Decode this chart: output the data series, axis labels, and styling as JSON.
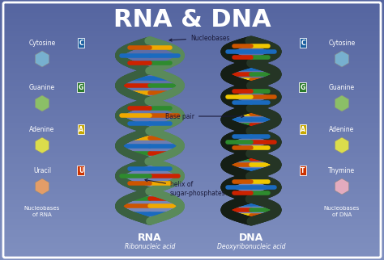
{
  "title": "RNA & DNA",
  "title_color": "#ffffff",
  "title_fontsize": 22,
  "title_fontweight": "bold",
  "bg_gradient_top": "#8090c0",
  "bg_gradient_bottom": "#5565a0",
  "bg_gradient_center": "#9aa5cc",
  "border_color": "#ffffff",
  "rna_label": "RNA",
  "rna_sublabel": "Ribonucleic acid",
  "dna_label": "DNA",
  "dna_sublabel": "Deoxyribonucleic acid",
  "rna_nucleobases_label": "Nucleobases\nof RNA",
  "dna_nucleobases_label": "Nucleobases\nof DNA",
  "annotation_nucleobases": "Nucleobases",
  "annotation_basepair": "Base pair",
  "annotation_helix": "helix of\nsugar-phosphates",
  "rna_labels": [
    "Cytosine",
    "Guanine",
    "Adenine",
    "Uracil"
  ],
  "rna_letters": [
    "C",
    "G",
    "A",
    "U"
  ],
  "rna_letter_bg": [
    "#1a5fa0",
    "#2a7a2a",
    "#c8a800",
    "#cc3300"
  ],
  "dna_labels": [
    "Cytosine",
    "Guanine",
    "Adenine",
    "Thymine"
  ],
  "dna_letters": [
    "C",
    "G",
    "A",
    "T"
  ],
  "dna_letter_bg": [
    "#1a5fa0",
    "#2a7a2a",
    "#c8a800",
    "#cc3300"
  ],
  "rna_mol_colors": [
    "#7ab8d4",
    "#90c860",
    "#e8e840",
    "#f0a060"
  ],
  "dna_mol_colors": [
    "#7ab8d4",
    "#90c860",
    "#e8e840",
    "#f0b0c0"
  ],
  "label_color": "#ffffff",
  "annotation_color": "#1a1a3a",
  "helix_rna_strand": "#5a8a5a",
  "helix_rna_strand_dark": "#3a6040",
  "helix_dna_strand": "#253525",
  "helix_dna_strand_dark": "#151e15",
  "base_colors_rna": [
    "#cc2200",
    "#f0a800",
    "#1a6abf",
    "#2e8b2e",
    "#cc5500",
    "#1a6abf"
  ],
  "base_colors_dna": [
    "#cc2200",
    "#f0c800",
    "#1a6abf",
    "#2e8b2e",
    "#cc5500",
    "#1a6abf"
  ],
  "figsize": [
    4.74,
    3.22
  ],
  "dpi": 100
}
